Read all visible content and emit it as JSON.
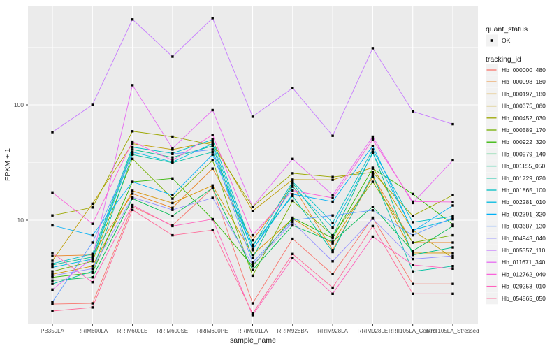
{
  "figure": {
    "background": "#FFFFFF",
    "panel_bg": "#EBEBEB",
    "grid_color": "#FFFFFF",
    "tick_color": "#333333",
    "tick_label_color": "#4D4D4D",
    "axis_title_color": "#1A1A1A",
    "point_color": "#000000",
    "legend_key_bg": "#F2F2F2"
  },
  "legend": {
    "quant_status_title": "quant_status",
    "quant_status_items": [
      {
        "label": "OK",
        "marker": "black-square-point"
      }
    ],
    "tracking_id_title": "tracking_id"
  },
  "chart_data": {
    "type": "line",
    "title": "",
    "xlabel": "sample_name",
    "ylabel": "FPKM + 1",
    "y_scale": "log10",
    "ylim": [
      1.25,
      750
    ],
    "y_ticks": [
      100,
      10
    ],
    "y_tick_labels": [
      "100",
      "10"
    ],
    "y_minor_ticks": [
      316.2,
      31.62,
      3.162
    ],
    "grid": true,
    "legend_position": "right",
    "marker": "black-square",
    "categories": [
      "PB350LA",
      "RRIM600LA",
      "RRIM600LE",
      "RRIM600SE",
      "RRIM600PE",
      "RRIM901LA",
      "RRIM928BA",
      "RRIM928LA",
      "RRIM928LE",
      "RRII105LA_Control",
      "RRII105LA_Stressed"
    ],
    "series": [
      {
        "name": "Hb_000000_480",
        "color": "#F8766D",
        "values": [
          1.87,
          1.9,
          13.1,
          9.0,
          19,
          1.9,
          6.9,
          3.4,
          10.5,
          2.8,
          2.8
        ]
      },
      {
        "name": "Hb_000098_180",
        "color": "#E88526",
        "values": [
          4.9,
          5.0,
          17,
          12.8,
          28,
          6.7,
          20,
          5.5,
          24,
          6.4,
          6.4
        ]
      },
      {
        "name": "Hb_000197_180",
        "color": "#D69100",
        "values": [
          3.4,
          4.0,
          18,
          14.1,
          20,
          5.0,
          10.3,
          6.3,
          23.7,
          5.2,
          5.2
        ]
      },
      {
        "name": "Hb_000375_060",
        "color": "#BE9C00",
        "values": [
          4.45,
          13.9,
          46,
          41,
          48,
          12.0,
          22.5,
          22.4,
          28.5,
          8.2,
          4.7
        ]
      },
      {
        "name": "Hb_000452_030",
        "color": "#9CA700",
        "values": [
          11.0,
          12.9,
          59,
          53,
          45,
          13.1,
          25.5,
          23.7,
          26,
          10.9,
          16.5
        ]
      },
      {
        "name": "Hb_000589_170",
        "color": "#74B000",
        "values": [
          3.6,
          4.4,
          34,
          15.4,
          33,
          3.3,
          14.7,
          7.4,
          21.5,
          6.4,
          7.4
        ]
      },
      {
        "name": "Hb_000922_320",
        "color": "#32B600",
        "values": [
          3.2,
          3.5,
          21.5,
          23,
          10.2,
          4.0,
          10.5,
          7.0,
          28,
          16.9,
          9.2
        ]
      },
      {
        "name": "Hb_000979_140",
        "color": "#00BC51",
        "values": [
          3.0,
          3.2,
          15.4,
          10.9,
          19,
          3.7,
          9.0,
          6.5,
          13.1,
          5.4,
          8.9
        ]
      },
      {
        "name": "Hb_001155_050",
        "color": "#00C08B",
        "values": [
          4.1,
          4.8,
          41,
          35,
          44,
          4.7,
          21,
          7.2,
          39,
          5.0,
          5.8
        ]
      },
      {
        "name": "Hb_001729_020",
        "color": "#00C1A3",
        "values": [
          2.8,
          3.6,
          37,
          31.5,
          39,
          6.1,
          16.2,
          5.3,
          25,
          3.6,
          4.0
        ]
      },
      {
        "name": "Hb_001865_100",
        "color": "#00BFC4",
        "values": [
          4.2,
          5.1,
          43,
          38,
          50,
          5.9,
          21.5,
          9.5,
          41,
          9.6,
          10.8
        ]
      },
      {
        "name": "Hb_002281_010",
        "color": "#00BAE0",
        "values": [
          3.9,
          4.6,
          39,
          32,
          46,
          5.5,
          19.5,
          8.6,
          38,
          8.2,
          10.2
        ]
      },
      {
        "name": "Hb_002391_320",
        "color": "#00B0F6",
        "values": [
          9.0,
          7.4,
          21.5,
          16.5,
          37,
          5.6,
          16.8,
          14.5,
          44,
          8.0,
          13.4
        ]
      },
      {
        "name": "Hb_003687_130",
        "color": "#619CFF",
        "values": [
          1.95,
          6.4,
          37.5,
          37.5,
          41,
          4.3,
          10.0,
          11.0,
          12.2,
          7.4,
          10.5
        ]
      },
      {
        "name": "Hb_004943_040",
        "color": "#9590FF",
        "values": [
          3.3,
          3.8,
          15.8,
          12.3,
          15.6,
          4.1,
          9.6,
          4.4,
          10.3,
          4.6,
          4.9
        ]
      },
      {
        "name": "Hb_005357_110",
        "color": "#C77CFF",
        "values": [
          58,
          100,
          550,
          262,
          565,
          79,
          140,
          54,
          310,
          88,
          68
        ]
      },
      {
        "name": "Hb_011671_340",
        "color": "#E76BF3",
        "values": [
          2.5,
          4.7,
          148,
          42,
          90,
          13.1,
          34,
          16.5,
          53,
          14.1,
          33
        ]
      },
      {
        "name": "Hb_012762_040",
        "color": "#FA62DB",
        "values": [
          17.4,
          9.3,
          48,
          33,
          55,
          7.4,
          18.1,
          15.6,
          50,
          14.5,
          14.4
        ]
      },
      {
        "name": "Hb_029253_010",
        "color": "#FF62BC",
        "values": [
          5.2,
          2.9,
          13.5,
          8.9,
          10.2,
          1.5,
          4.7,
          2.3,
          7.2,
          4.1,
          3.8
        ]
      },
      {
        "name": "Hb_054865_050",
        "color": "#FF6A98",
        "values": [
          1.63,
          1.75,
          12.3,
          7.4,
          8.2,
          1.55,
          5.1,
          2.6,
          8.9,
          2.3,
          2.3
        ]
      }
    ]
  }
}
